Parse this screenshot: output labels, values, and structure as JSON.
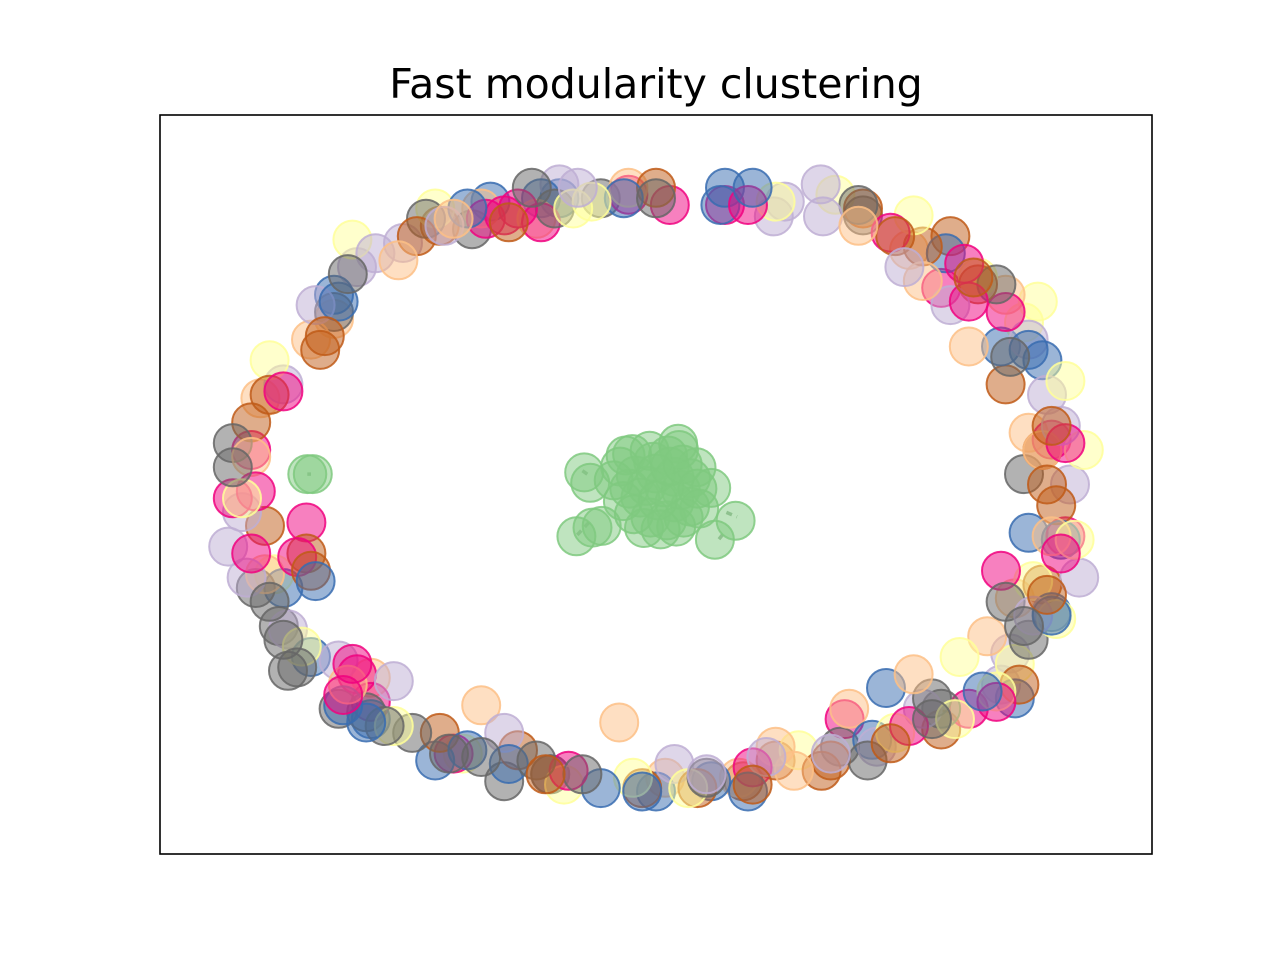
{
  "chart_data": {
    "type": "scatter",
    "title": "Fast modularity clustering",
    "xlabel": "",
    "ylabel": "",
    "xlim": [
      -1.0,
      1.0
    ],
    "ylim": [
      -1.0,
      1.0
    ],
    "grid": false,
    "axis_ticks": false,
    "legend": "none",
    "node_alpha": 0.5,
    "community_palette": [
      "#7fc97f",
      "#beaed4",
      "#fdc086",
      "#ffff99",
      "#386cb0",
      "#f0027f",
      "#bf5b17",
      "#666666"
    ],
    "communities": [
      {
        "id": 0,
        "color": "#7fc97f",
        "nodes": [
          [
            -0.052,
            0.088
          ],
          [
            -0.014,
            0.098
          ],
          [
            0.026,
            0.084
          ],
          [
            0.058,
            0.058
          ],
          [
            -0.078,
            0.052
          ],
          [
            -0.044,
            0.026
          ],
          [
            0.0,
            0.032
          ],
          [
            0.04,
            0.022
          ],
          [
            0.076,
            0.018
          ],
          [
            -0.092,
            0.012
          ],
          [
            -0.058,
            -0.012
          ],
          [
            -0.02,
            -0.004
          ],
          [
            0.018,
            -0.008
          ],
          [
            0.054,
            -0.016
          ],
          [
            0.09,
            -0.012
          ],
          [
            -0.072,
            -0.048
          ],
          [
            -0.034,
            -0.038
          ],
          [
            0.004,
            -0.046
          ],
          [
            0.04,
            -0.052
          ],
          [
            0.074,
            -0.064
          ],
          [
            -0.048,
            -0.086
          ],
          [
            -0.012,
            -0.096
          ],
          [
            0.024,
            -0.104
          ],
          [
            0.06,
            -0.096
          ],
          [
            -0.026,
            -0.126
          ],
          [
            0.01,
            -0.13
          ],
          [
            0.044,
            -0.122
          ],
          [
            -0.006,
            0.066
          ],
          [
            0.03,
            0.052
          ],
          [
            -0.066,
            0.084
          ],
          [
            -0.156,
            0.035
          ],
          [
            -0.143,
            0.005
          ],
          [
            0.12,
            -0.01
          ],
          [
            0.088,
            0.05
          ],
          [
            0.05,
            0.1
          ],
          [
            0.173,
            -0.105
          ],
          [
            0.128,
            -0.16
          ],
          [
            -0.173,
            -0.15
          ],
          [
            -0.138,
            -0.125
          ],
          [
            -0.118,
            -0.12
          ],
          [
            0.094,
            -0.07
          ],
          [
            0.048,
            0.118
          ],
          [
            -0.746,
            0.03
          ],
          [
            -0.758,
            0.03
          ]
        ]
      },
      {
        "id": 1,
        "color": "#beaed4",
        "nodes": [
          [
            -0.21,
            0.87
          ],
          [
            -0.17,
            0.86
          ],
          [
            0.358,
            0.87
          ],
          [
            0.256,
            0.777
          ],
          [
            0.363,
            0.777
          ],
          [
            -0.55,
            0.7
          ],
          [
            -0.65,
            0.63
          ],
          [
            -0.74,
            0.52
          ],
          [
            -0.81,
            0.29
          ],
          [
            -0.93,
            -0.18
          ],
          [
            -0.89,
            -0.27
          ],
          [
            -0.69,
            -0.51
          ],
          [
            -0.57,
            -0.57
          ],
          [
            -0.33,
            -0.72
          ],
          [
            0.04,
            -0.81
          ],
          [
            0.24,
            -0.79
          ],
          [
            0.48,
            -0.76
          ],
          [
            0.77,
            -0.49
          ],
          [
            0.82,
            -0.38
          ],
          [
            0.92,
            -0.27
          ],
          [
            0.9,
            0.0
          ],
          [
            0.85,
            0.26
          ],
          [
            0.81,
            0.42
          ],
          [
            0.54,
            0.63
          ],
          [
            0.64,
            0.52
          ],
          [
            0.28,
            0.82
          ],
          [
            -0.46,
            0.75
          ],
          [
            -0.9,
            -0.08
          ],
          [
            -0.8,
            -0.42
          ],
          [
            0.38,
            -0.78
          ],
          [
            0.58,
            -0.65
          ],
          [
            0.75,
            -0.58
          ],
          [
            0.88,
            0.17
          ],
          [
            -0.61,
            0.67
          ],
          [
            0.11,
            -0.84
          ]
        ]
      },
      {
        "id": 2,
        "color": "#fdc086",
        "nodes": [
          [
            -0.06,
            0.86
          ],
          [
            -0.38,
            0.8
          ],
          [
            -0.56,
            0.65
          ],
          [
            -0.75,
            0.42
          ],
          [
            -0.86,
            0.25
          ],
          [
            -0.88,
            0.08
          ],
          [
            -0.85,
            -0.26
          ],
          [
            -0.62,
            -0.56
          ],
          [
            -0.67,
            -0.58
          ],
          [
            -0.38,
            -0.64
          ],
          [
            -0.08,
            -0.69
          ],
          [
            0.26,
            -0.76
          ],
          [
            0.42,
            -0.65
          ],
          [
            0.56,
            -0.55
          ],
          [
            0.72,
            -0.44
          ],
          [
            0.78,
            -0.33
          ],
          [
            0.86,
            -0.15
          ],
          [
            0.84,
            0.1
          ],
          [
            0.81,
            0.15
          ],
          [
            0.68,
            0.4
          ],
          [
            0.55,
            0.68
          ],
          [
            0.44,
            0.75
          ],
          [
            0.58,
            0.59
          ],
          [
            0.76,
            0.55
          ],
          [
            -0.44,
            0.77
          ],
          [
            -0.26,
            0.77
          ],
          [
            -0.7,
            0.48
          ],
          [
            0.3,
            -0.83
          ],
          [
            0.18,
            -0.85
          ],
          [
            0.02,
            -0.85
          ]
        ]
      },
      {
        "id": 3,
        "color": "#ffff99",
        "nodes": [
          [
            -0.14,
            0.82
          ],
          [
            0.26,
            0.82
          ],
          [
            0.39,
            0.84
          ],
          [
            0.56,
            0.78
          ],
          [
            0.7,
            0.6
          ],
          [
            0.8,
            0.47
          ],
          [
            0.89,
            0.3
          ],
          [
            0.93,
            0.1
          ],
          [
            0.91,
            -0.16
          ],
          [
            0.87,
            -0.39
          ],
          [
            0.78,
            -0.52
          ],
          [
            0.65,
            -0.68
          ],
          [
            0.52,
            -0.72
          ],
          [
            0.31,
            -0.77
          ],
          [
            0.07,
            -0.88
          ],
          [
            -0.2,
            -0.87
          ],
          [
            -0.42,
            -0.78
          ],
          [
            -0.57,
            -0.7
          ],
          [
            -0.77,
            -0.47
          ],
          [
            -0.9,
            -0.04
          ],
          [
            -0.84,
            0.36
          ],
          [
            -0.66,
            0.71
          ],
          [
            -0.18,
            0.8
          ],
          [
            -0.48,
            0.8
          ],
          [
            0.83,
            0.53
          ],
          [
            0.74,
            -0.6
          ],
          [
            -0.05,
            -0.85
          ],
          [
            -0.83,
            -0.26
          ],
          [
            0.66,
            -0.5
          ],
          [
            0.82,
            -0.28
          ]
        ]
      },
      {
        "id": 4,
        "color": "#386cb0",
        "nodes": [
          [
            -0.36,
            0.82
          ],
          [
            -0.41,
            0.8
          ],
          [
            -0.25,
            0.83
          ],
          [
            -0.21,
            0.83
          ],
          [
            -0.07,
            0.83
          ],
          [
            0.15,
            0.86
          ],
          [
            0.21,
            0.86
          ],
          [
            0.14,
            0.81
          ],
          [
            -0.7,
            0.55
          ],
          [
            -0.69,
            0.53
          ],
          [
            0.63,
            0.67
          ],
          [
            0.75,
            0.4
          ],
          [
            0.81,
            0.39
          ],
          [
            0.84,
            0.36
          ],
          [
            0.81,
            -0.14
          ],
          [
            0.88,
            -0.16
          ],
          [
            0.86,
            -0.37
          ],
          [
            0.71,
            -0.6
          ],
          [
            0.5,
            -0.59
          ],
          [
            0.47,
            -0.74
          ],
          [
            0.2,
            -0.89
          ],
          [
            0.12,
            -0.86
          ],
          [
            0.0,
            -0.89
          ],
          [
            -0.03,
            -0.89
          ],
          [
            -0.12,
            -0.88
          ],
          [
            -0.23,
            -0.84
          ],
          [
            -0.32,
            -0.81
          ],
          [
            -0.41,
            -0.77
          ],
          [
            -0.63,
            -0.69
          ],
          [
            -0.68,
            -0.64
          ],
          [
            -0.75,
            -0.5
          ],
          [
            -0.74,
            -0.28
          ],
          [
            -0.62,
            -0.68
          ],
          [
            -0.48,
            -0.8
          ],
          [
            0.86,
            -0.38
          ],
          [
            0.78,
            -0.62
          ],
          [
            -0.81,
            -0.3
          ]
        ]
      },
      {
        "id": 5,
        "color": "#f0027f",
        "nodes": [
          [
            0.03,
            0.81
          ],
          [
            0.15,
            0.81
          ],
          [
            0.2,
            0.81
          ],
          [
            -0.06,
            0.84
          ],
          [
            -0.3,
            0.8
          ],
          [
            -0.25,
            0.76
          ],
          [
            -0.37,
            0.77
          ],
          [
            0.51,
            0.73
          ],
          [
            0.67,
            0.64
          ],
          [
            0.62,
            0.57
          ],
          [
            0.68,
            0.53
          ],
          [
            0.76,
            0.5
          ],
          [
            0.86,
            0.13
          ],
          [
            0.89,
            0.12
          ],
          [
            0.89,
            -0.15
          ],
          [
            0.88,
            -0.2
          ],
          [
            0.75,
            -0.25
          ],
          [
            0.68,
            -0.65
          ],
          [
            0.74,
            -0.63
          ],
          [
            0.55,
            -0.7
          ],
          [
            0.41,
            -0.68
          ],
          [
            0.21,
            -0.82
          ],
          [
            -0.19,
            -0.83
          ],
          [
            -0.44,
            -0.78
          ],
          [
            -0.66,
            -0.52
          ],
          [
            -0.65,
            -0.55
          ],
          [
            -0.68,
            -0.61
          ],
          [
            -0.78,
            -0.21
          ],
          [
            -0.76,
            -0.11
          ],
          [
            -0.87,
            -0.02
          ],
          [
            -0.92,
            -0.04
          ],
          [
            -0.88,
            0.1
          ],
          [
            -0.81,
            0.27
          ],
          [
            -0.33,
            0.78
          ],
          [
            -0.62,
            -0.63
          ],
          [
            -0.88,
            -0.2
          ]
        ]
      },
      {
        "id": 6,
        "color": "#bf5b17",
        "nodes": [
          [
            -0.52,
            0.72
          ],
          [
            -0.47,
            0.75
          ],
          [
            -0.32,
            0.76
          ],
          [
            0.0,
            0.86
          ],
          [
            0.45,
            0.8
          ],
          [
            0.52,
            0.72
          ],
          [
            0.58,
            0.69
          ],
          [
            0.64,
            0.72
          ],
          [
            0.69,
            0.6
          ],
          [
            0.7,
            0.58
          ],
          [
            0.76,
            0.29
          ],
          [
            0.86,
            0.17
          ],
          [
            0.84,
            0.1
          ],
          [
            0.85,
            0.0
          ],
          [
            0.87,
            -0.06
          ],
          [
            0.84,
            -0.29
          ],
          [
            0.85,
            -0.32
          ],
          [
            0.79,
            -0.58
          ],
          [
            0.62,
            -0.71
          ],
          [
            0.51,
            -0.75
          ],
          [
            0.38,
            -0.8
          ],
          [
            0.26,
            -0.8
          ],
          [
            0.36,
            -0.83
          ],
          [
            0.19,
            -0.86
          ],
          [
            0.21,
            -0.87
          ],
          [
            0.09,
            -0.88
          ],
          [
            -0.03,
            -0.88
          ],
          [
            -0.24,
            -0.84
          ],
          [
            -0.3,
            -0.77
          ],
          [
            -0.47,
            -0.72
          ],
          [
            -0.75,
            -0.25
          ],
          [
            -0.76,
            -0.2
          ],
          [
            -0.85,
            -0.12
          ],
          [
            -0.84,
            0.26
          ],
          [
            -0.88,
            0.18
          ],
          [
            -0.72,
            0.43
          ],
          [
            -0.73,
            0.39
          ]
        ]
      },
      {
        "id": 7,
        "color": "#666666",
        "nodes": [
          [
            -0.27,
            0.86
          ],
          [
            -0.22,
            0.8
          ],
          [
            -0.12,
            0.83
          ],
          [
            0.0,
            0.83
          ],
          [
            0.44,
            0.81
          ],
          [
            0.45,
            0.78
          ],
          [
            0.77,
            0.37
          ],
          [
            0.74,
            0.58
          ],
          [
            0.8,
            0.03
          ],
          [
            0.76,
            -0.34
          ],
          [
            0.81,
            -0.45
          ],
          [
            0.8,
            -0.41
          ],
          [
            0.6,
            -0.62
          ],
          [
            0.62,
            -0.65
          ],
          [
            0.6,
            -0.68
          ],
          [
            0.46,
            -0.8
          ],
          [
            0.4,
            -0.76
          ],
          [
            0.11,
            -0.85
          ],
          [
            -0.16,
            -0.84
          ],
          [
            -0.23,
            -0.84
          ],
          [
            -0.26,
            -0.8
          ],
          [
            -0.33,
            -0.86
          ],
          [
            -0.38,
            -0.79
          ],
          [
            -0.45,
            -0.78
          ],
          [
            -0.53,
            -0.72
          ],
          [
            -0.59,
            -0.7
          ],
          [
            -0.63,
            -0.66
          ],
          [
            -0.69,
            -0.65
          ],
          [
            -0.78,
            -0.53
          ],
          [
            -0.81,
            -0.45
          ],
          [
            -0.82,
            -0.41
          ],
          [
            -0.84,
            -0.34
          ],
          [
            -0.87,
            -0.3
          ],
          [
            -0.92,
            0.05
          ],
          [
            -0.92,
            0.12
          ],
          [
            -0.7,
            0.5
          ],
          [
            -0.67,
            0.61
          ],
          [
            -0.5,
            0.77
          ],
          [
            -0.4,
            0.74
          ],
          [
            -0.8,
            -0.54
          ]
        ]
      }
    ],
    "edges": [
      [
        [
          -0.146,
          -0.11
        ],
        [
          -0.175,
          -0.152
        ]
      ],
      [
        [
          0.145,
          -0.145
        ],
        [
          0.133,
          -0.165
        ]
      ],
      [
        [
          0.153,
          -0.081
        ],
        [
          0.176,
          -0.094
        ]
      ],
      [
        [
          -0.16,
          0.04
        ],
        [
          -0.145,
          0.026
        ]
      ],
      [
        [
          -0.75,
          0.03
        ],
        [
          -0.758,
          0.03
        ]
      ]
    ]
  }
}
